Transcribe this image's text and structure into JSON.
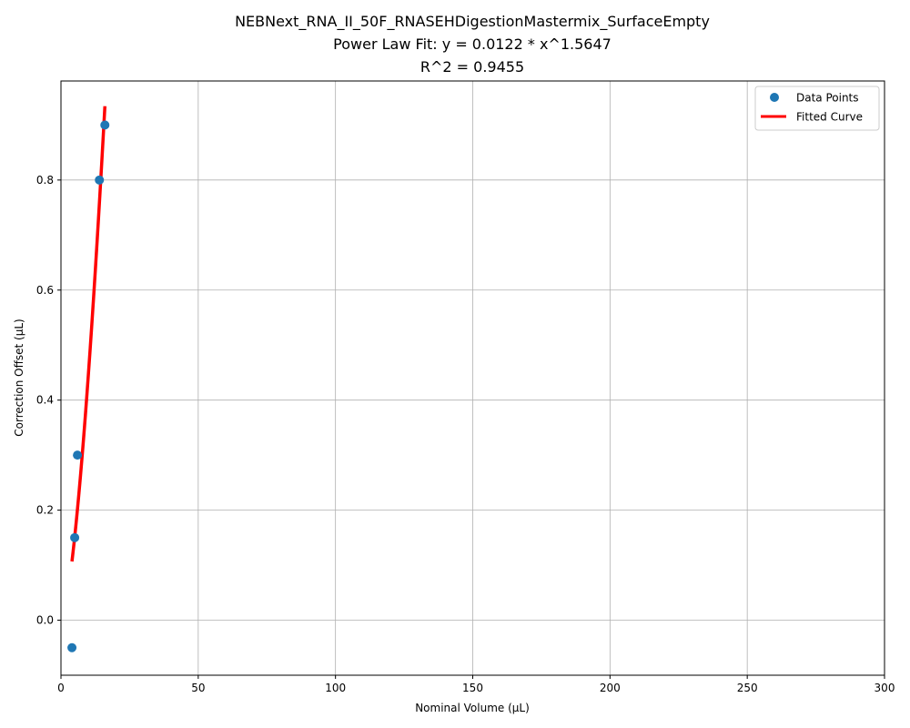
{
  "chart_data": {
    "type": "scatter",
    "title_lines": [
      "NEBNext_RNA_II_50F_RNASEHDigestionMastermix_SurfaceEmpty",
      "Power Law Fit: y = 0.0122 * x^1.5647",
      "R^2 = 0.9455"
    ],
    "xlabel": "Nominal Volume (µL)",
    "ylabel": "Correction Offset (µL)",
    "xlim": [
      0,
      300
    ],
    "ylim": [
      -0.1,
      0.98
    ],
    "xticks": [
      0,
      50,
      100,
      150,
      200,
      250,
      300
    ],
    "yticks": [
      0.0,
      0.2,
      0.4,
      0.6,
      0.8
    ],
    "grid": true,
    "legend_position": "top-right",
    "series": [
      {
        "name": "Data Points",
        "kind": "scatter",
        "color": "#1f77b4",
        "x": [
          4,
          5,
          6,
          14,
          16
        ],
        "y": [
          -0.05,
          0.15,
          0.3,
          0.8,
          0.9
        ]
      },
      {
        "name": "Fitted Curve",
        "kind": "line",
        "color": "#ff0000",
        "fit": {
          "a": 0.0122,
          "b": 1.5647
        },
        "x_range": [
          4,
          16
        ]
      }
    ]
  }
}
